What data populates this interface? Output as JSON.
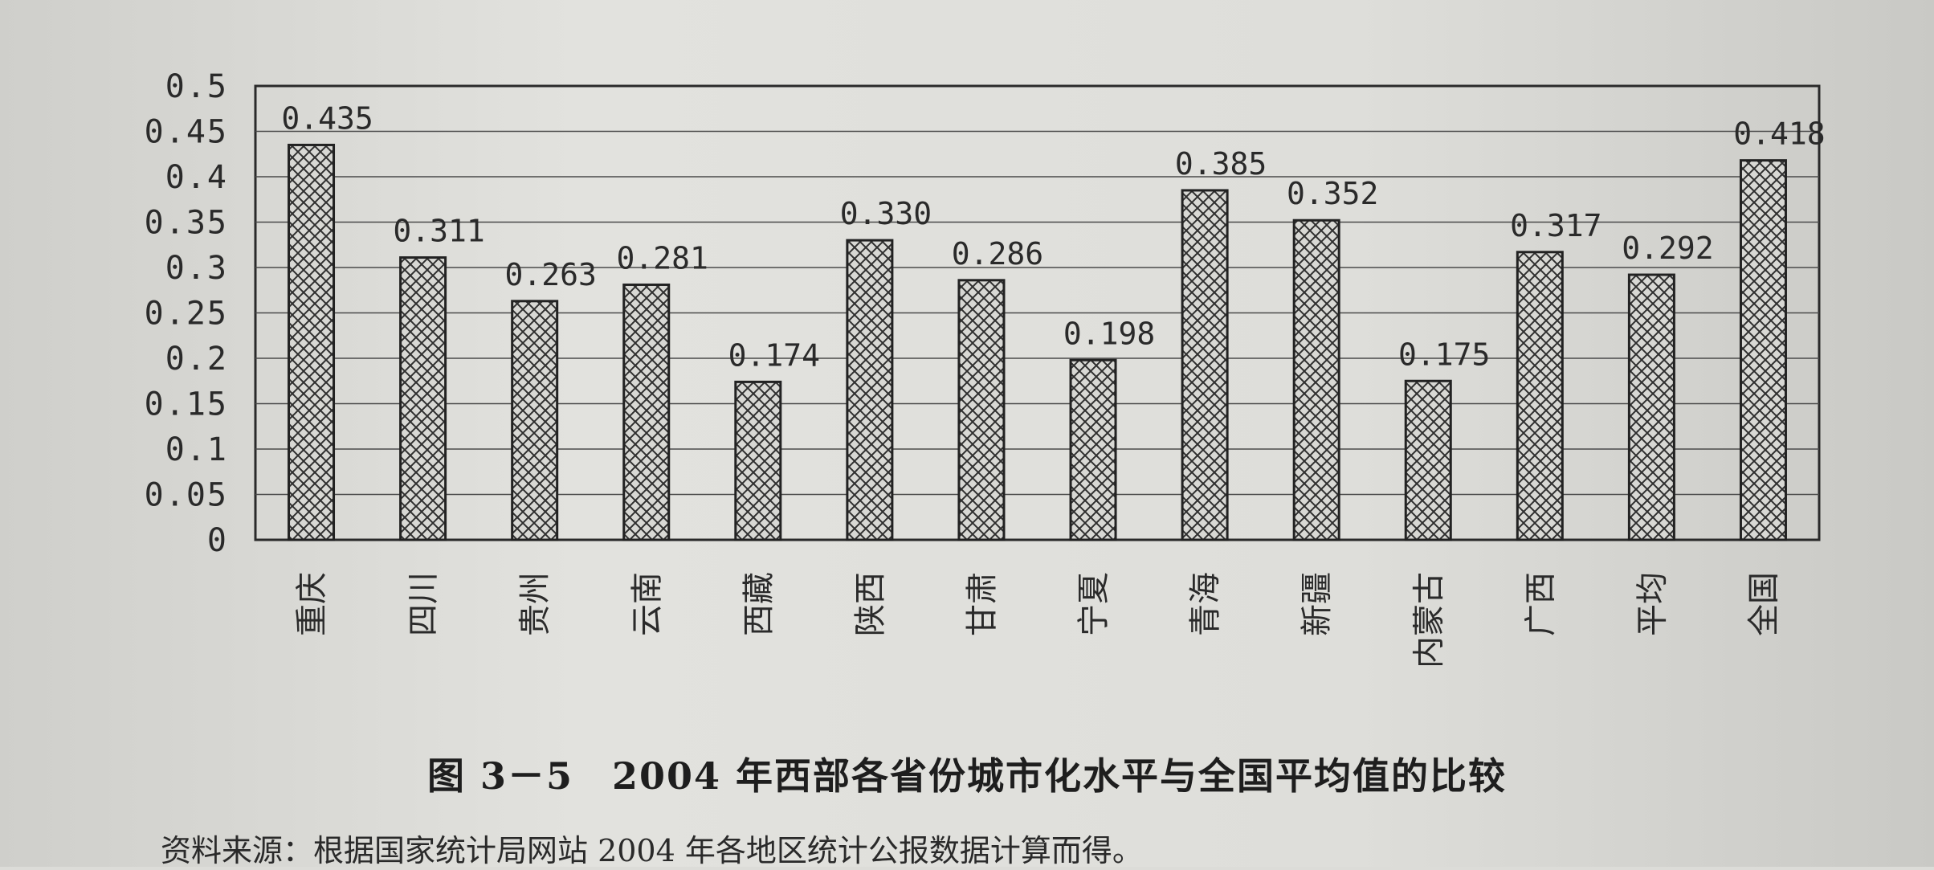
{
  "chart_data": {
    "type": "bar",
    "categories": [
      "重庆",
      "四川",
      "贵州",
      "云南",
      "西藏",
      "陕西",
      "甘肃",
      "宁夏",
      "青海",
      "新疆",
      "内蒙古",
      "广西",
      "平均",
      "全国"
    ],
    "values": [
      0.435,
      0.311,
      0.263,
      0.281,
      0.174,
      0.33,
      0.286,
      0.198,
      0.385,
      0.352,
      0.175,
      0.317,
      0.292,
      0.418
    ],
    "value_labels": [
      "0.435",
      "0.311",
      "0.263",
      "0.281",
      "0.174",
      "0.330",
      "0.286",
      "0.198",
      "0.385",
      "0.352",
      "0.175",
      "0.317",
      "0.292",
      "0.418"
    ],
    "yticks": [
      "0",
      "0.05",
      "0.1",
      "0.15",
      "0.2",
      "0.25",
      "0.3",
      "0.35",
      "0.4",
      "0.45",
      "0.5"
    ],
    "ylim": [
      0,
      0.5
    ],
    "grid": true,
    "bar_pattern": "crosshatch"
  },
  "caption": "图 3－5　2004 年西部各省份城市化水平与全国平均值的比较",
  "source": "资料来源：根据国家统计局网站 2004 年各地区统计公报数据计算而得。"
}
